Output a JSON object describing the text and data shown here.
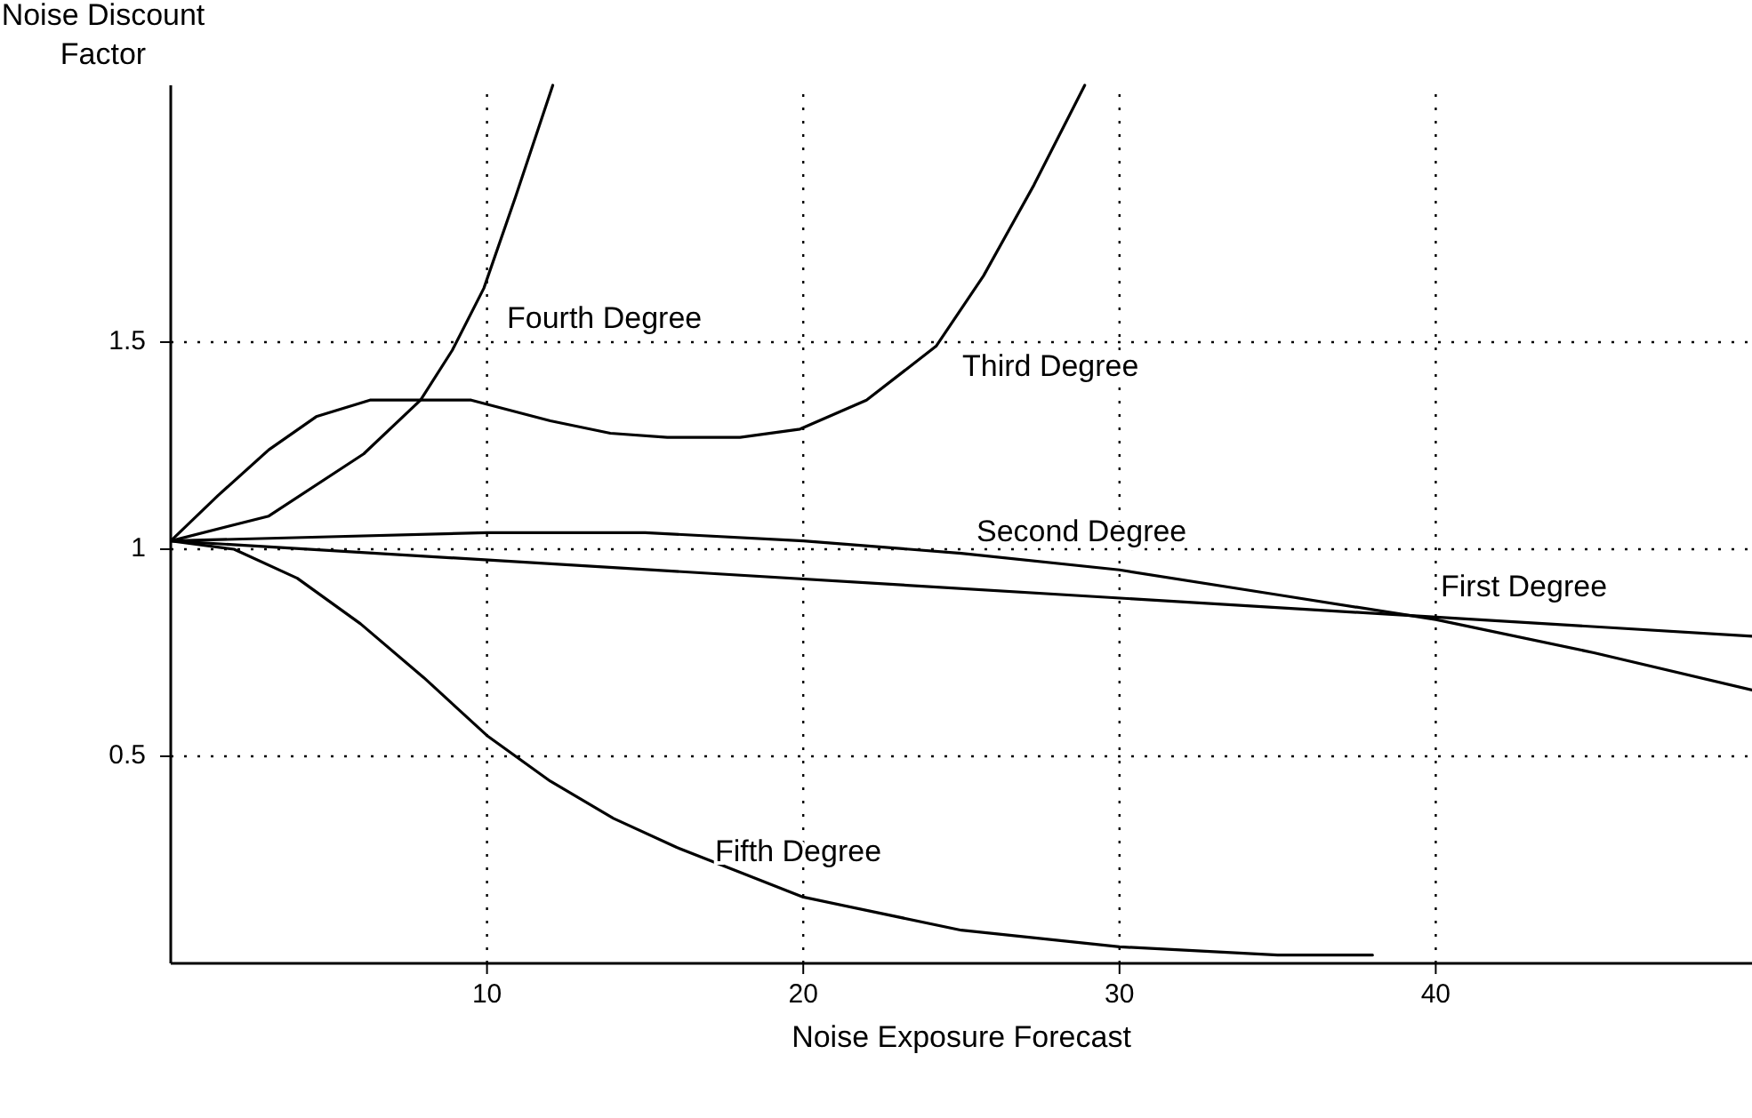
{
  "chart_data": {
    "type": "line",
    "xlabel": "Noise Exposure Forecast",
    "ylabel": "Noise Discount Factor",
    "xlim": [
      0,
      50
    ],
    "ylim": [
      0,
      2.12
    ],
    "xticks": [
      10,
      20,
      30,
      40
    ],
    "yticks": [
      0.5,
      1,
      1.5
    ],
    "grid": true,
    "marker": "none",
    "line_style": "solid",
    "series": [
      {
        "name": "First Degree",
        "color": "#000000",
        "x": [
          0,
          50
        ],
        "values": [
          1.02,
          0.79
        ]
      },
      {
        "name": "Second Degree",
        "color": "#000000",
        "x": [
          0,
          5,
          10,
          15,
          20,
          25,
          30,
          35,
          40,
          45,
          50
        ],
        "values": [
          1.02,
          1.03,
          1.04,
          1.04,
          1.02,
          0.99,
          0.95,
          0.89,
          0.83,
          0.75,
          0.66
        ]
      },
      {
        "name": "Third Degree",
        "color": "#000000",
        "x": [
          0,
          1.5,
          3.1,
          4.6,
          6.3,
          9.5,
          12,
          13.9,
          15.7,
          18,
          19.9,
          22,
          24.2,
          25.7,
          27.3,
          28.9
        ],
        "values": [
          1.02,
          1.13,
          1.24,
          1.32,
          1.36,
          1.36,
          1.31,
          1.28,
          1.27,
          1.27,
          1.29,
          1.36,
          1.49,
          1.66,
          1.88,
          2.12
        ]
      },
      {
        "name": "Fourth Degree",
        "color": "#000000",
        "x": [
          0,
          3.1,
          6.1,
          7.9,
          8.9,
          9.9,
          10.9,
          12.08
        ],
        "values": [
          1.02,
          1.08,
          1.23,
          1.36,
          1.48,
          1.63,
          1.85,
          2.12
        ]
      },
      {
        "name": "Fifth Degree",
        "color": "#000000",
        "x": [
          0,
          2,
          4,
          6,
          8,
          10,
          12,
          14,
          16,
          18,
          20,
          25,
          30,
          35,
          38
        ],
        "values": [
          1.02,
          1.0,
          0.93,
          0.82,
          0.69,
          0.55,
          0.44,
          0.35,
          0.28,
          0.22,
          0.16,
          0.08,
          0.04,
          0.02,
          0.02
        ]
      }
    ]
  }
}
